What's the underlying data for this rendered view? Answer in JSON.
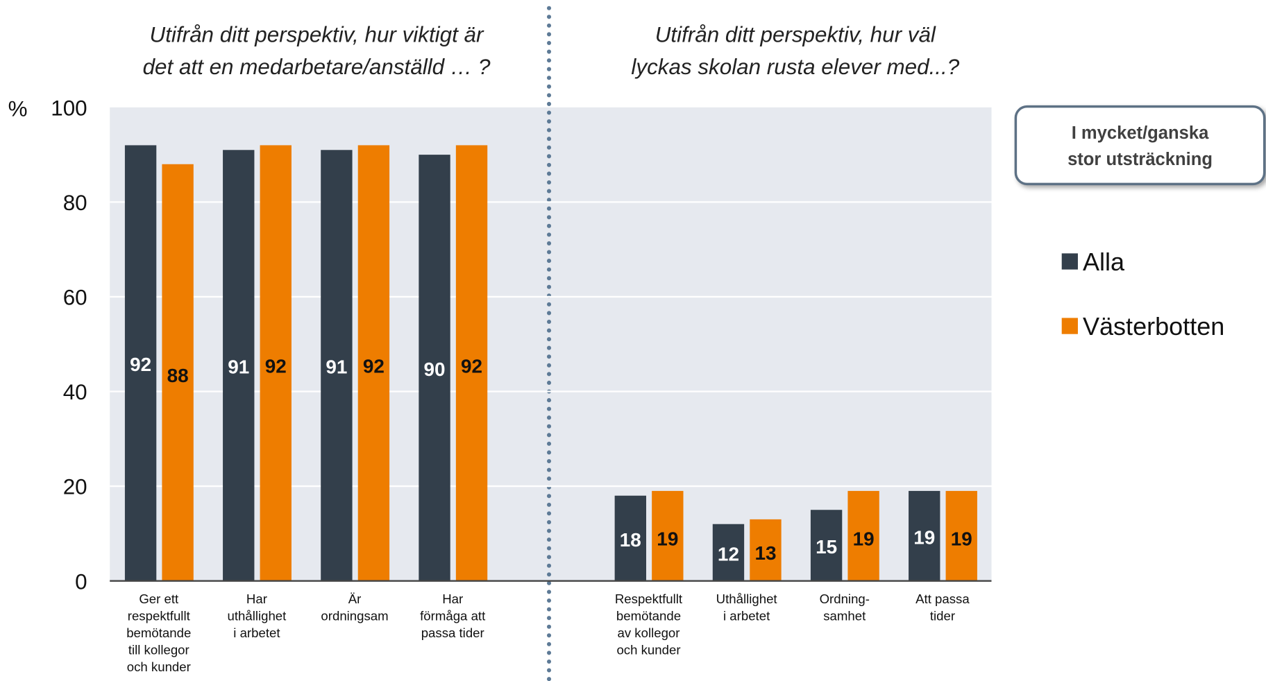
{
  "chart_data": {
    "type": "bar",
    "annotations": [
      "Utifrån ditt perspektiv, hur viktigt är\ndet att en medarbetare/anställd … ?",
      "Utifrån ditt perspektiv, hur väl\nlyckas skolan rusta elever med...?"
    ],
    "legend_title": "I mycket/ganska\nstor utsträckning",
    "y_label": "%",
    "categories": [
      "Ger ett\nrespektfullt\nbemötande\ntill kollegor\noch kunder",
      "Har\nuthållighet\ni arbetet",
      "Är\nordningsam",
      "Har\nförmåga att\npassa tider",
      null,
      "Respektfullt\nbemötande\nav kollegor\noch kunder",
      "Uthållighet\ni arbetet",
      "Ordning-\nsamhet",
      "Att passa\ntider"
    ],
    "series": [
      {
        "name": "Alla",
        "color": "#333f4b",
        "values": [
          92,
          91,
          91,
          90,
          null,
          18,
          12,
          15,
          19
        ]
      },
      {
        "name": "Västerbotten",
        "color": "#ee7d00",
        "values": [
          88,
          92,
          92,
          92,
          null,
          19,
          13,
          19,
          19
        ]
      }
    ],
    "ylim": [
      0,
      100
    ],
    "yticks": [
      0,
      20,
      40,
      60,
      80,
      100
    ],
    "grid": true,
    "legend": "right"
  }
}
